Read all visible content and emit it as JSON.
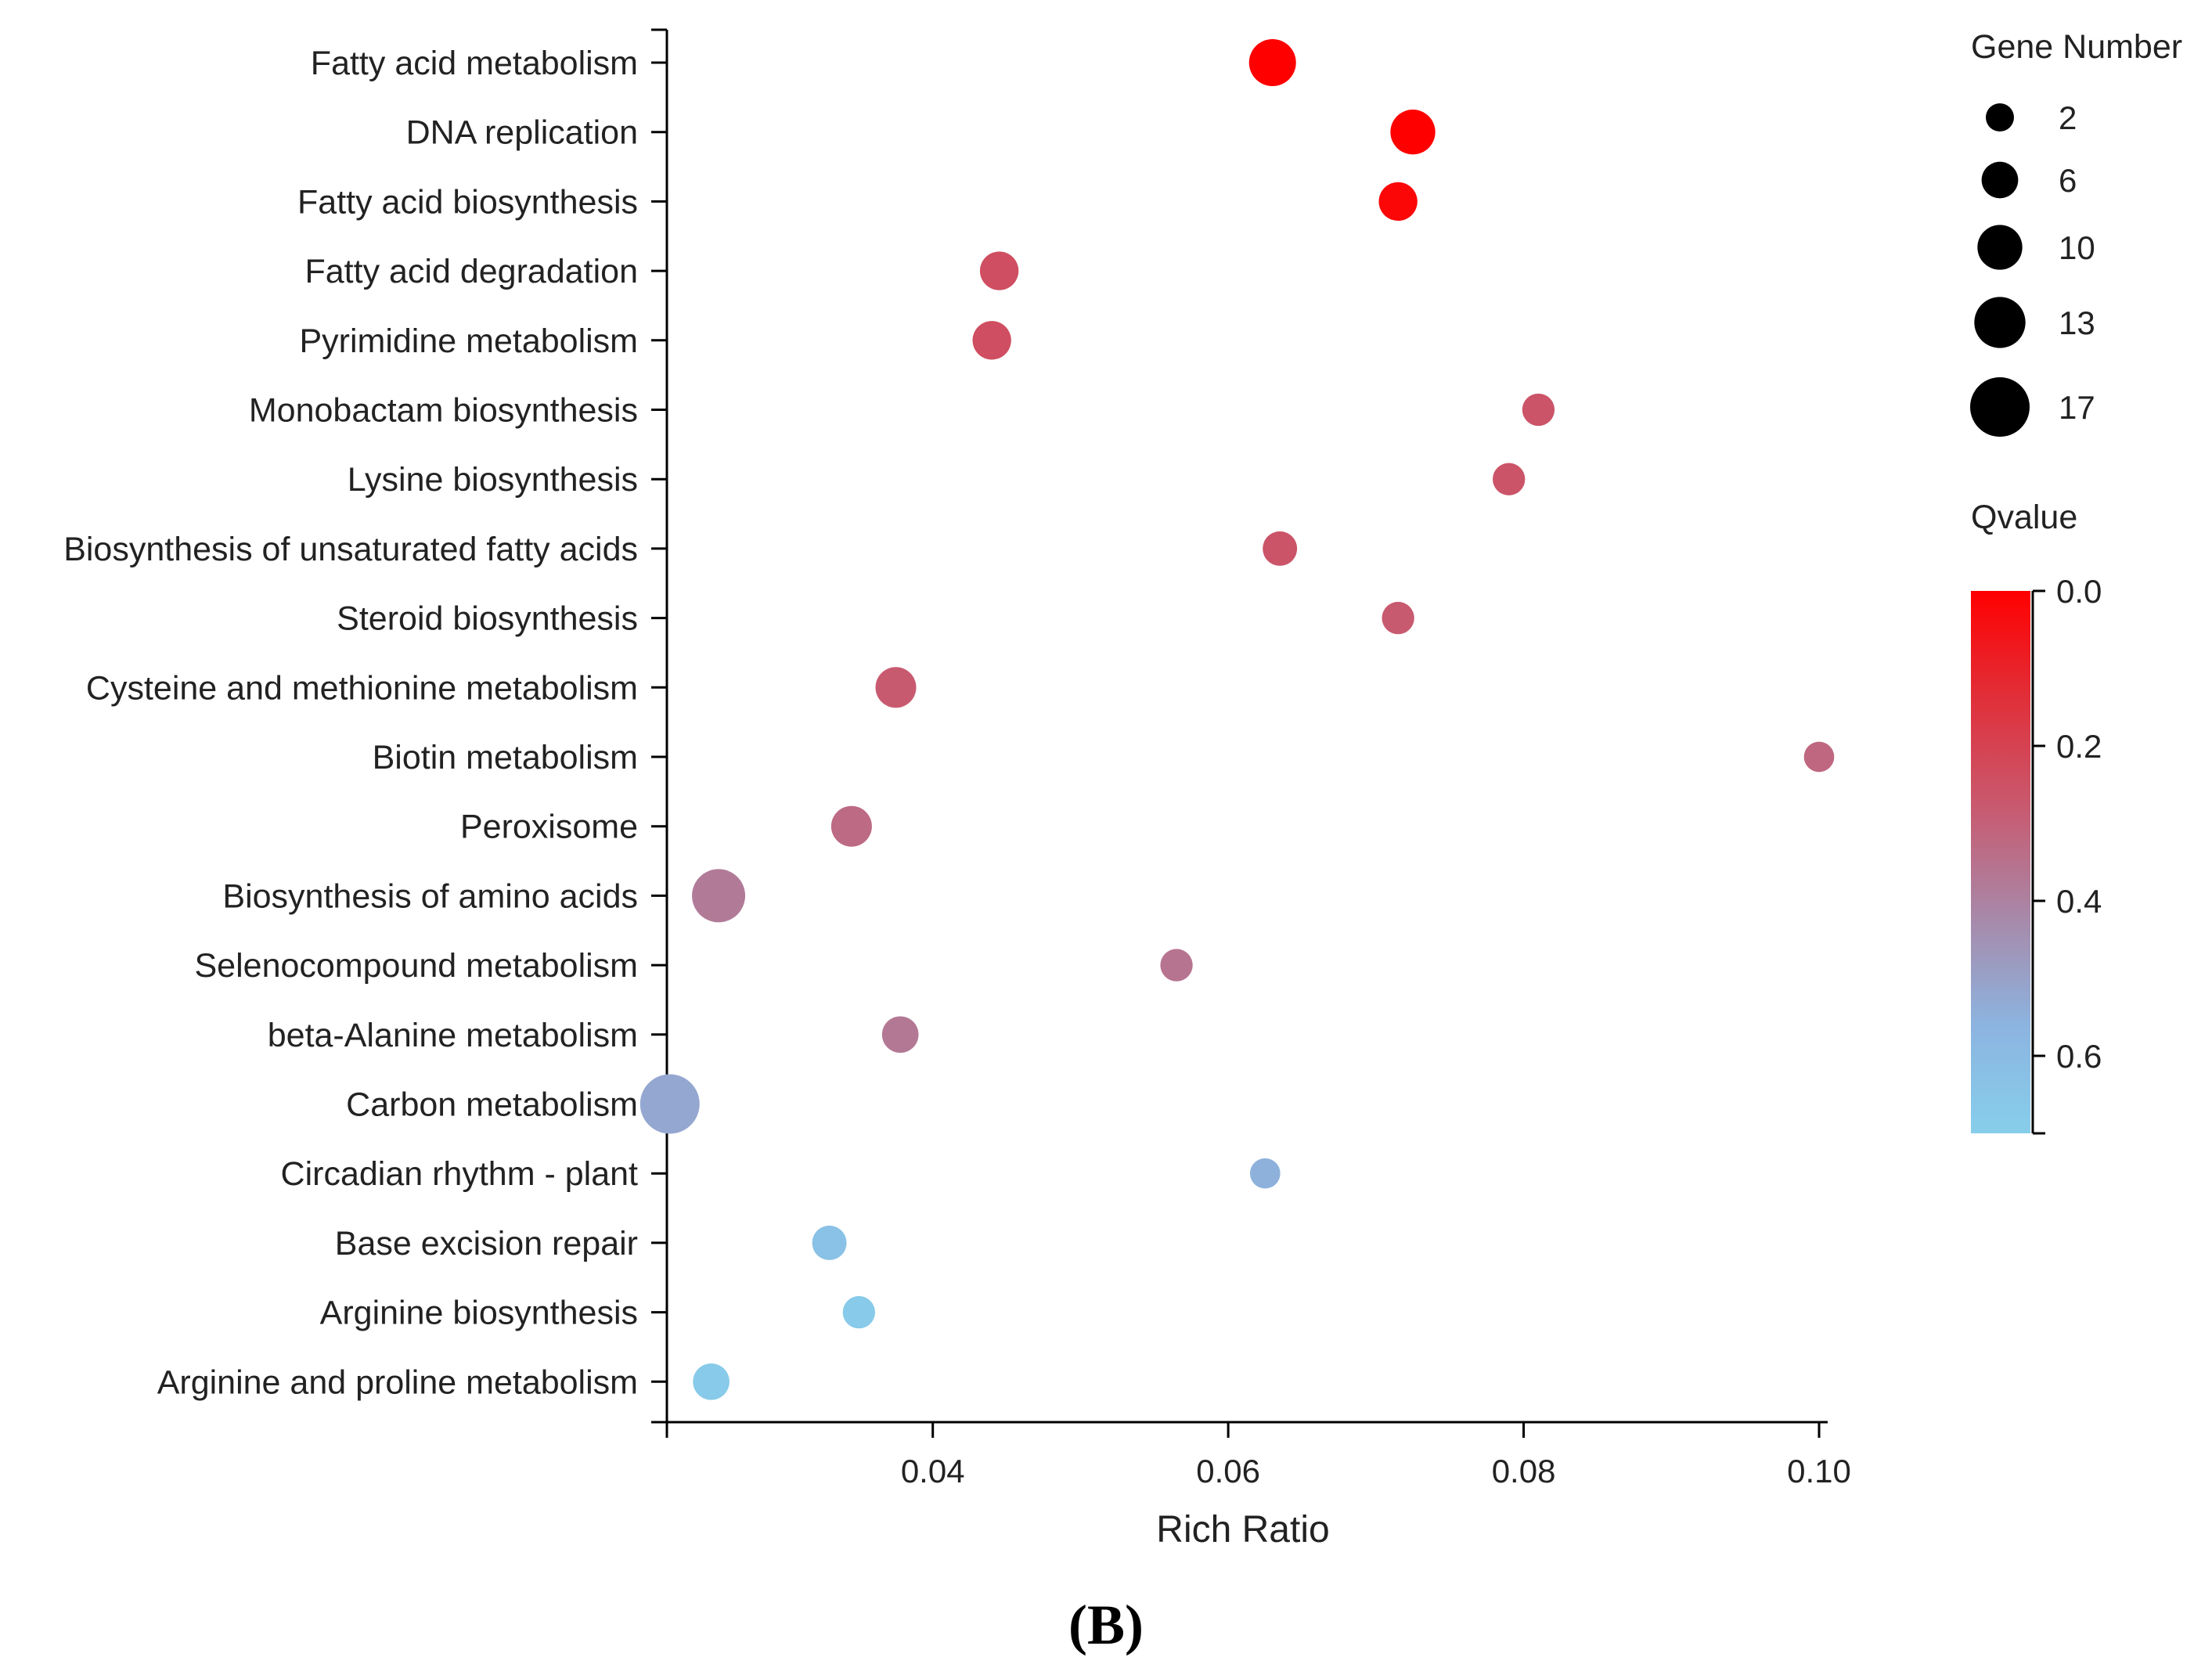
{
  "chart_data": {
    "type": "scatter",
    "panel_label": "(B)",
    "xlabel": "Rich Ratio",
    "xlim": [
      0.022,
      0.1
    ],
    "xticks": [
      0.04,
      0.06,
      0.08,
      0.1
    ],
    "xtick_labels": [
      "0.04",
      "0.06",
      "0.08",
      "0.10"
    ],
    "categories": [
      "Fatty acid metabolism",
      "DNA replication",
      "Fatty acid biosynthesis",
      "Fatty acid degradation",
      "Pyrimidine metabolism",
      "Monobactam biosynthesis",
      "Lysine biosynthesis",
      "Biosynthesis of unsaturated fatty acids",
      "Steroid biosynthesis",
      "Cysteine and methionine metabolism",
      "Biotin metabolism",
      "Peroxisome",
      "Biosynthesis of amino acids",
      "Selenocompound metabolism",
      "beta-Alanine metabolism",
      "Carbon metabolism",
      "Circadian rhythm - plant",
      "Base excision repair",
      "Arginine biosynthesis",
      "Arginine and proline metabolism"
    ],
    "points": [
      {
        "pathway": "Fatty acid metabolism",
        "rich_ratio": 0.063,
        "gene_number": 11,
        "qvalue": 0.0
      },
      {
        "pathway": "DNA replication",
        "rich_ratio": 0.0725,
        "gene_number": 10,
        "qvalue": 0.0
      },
      {
        "pathway": "Fatty acid biosynthesis",
        "rich_ratio": 0.0715,
        "gene_number": 7,
        "qvalue": 0.02
      },
      {
        "pathway": "Fatty acid degradation",
        "rich_ratio": 0.0445,
        "gene_number": 7,
        "qvalue": 0.24
      },
      {
        "pathway": "Pyrimidine metabolism",
        "rich_ratio": 0.044,
        "gene_number": 7,
        "qvalue": 0.24
      },
      {
        "pathway": "Monobactam biosynthesis",
        "rich_ratio": 0.081,
        "gene_number": 4,
        "qvalue": 0.26
      },
      {
        "pathway": "Lysine biosynthesis",
        "rich_ratio": 0.079,
        "gene_number": 4,
        "qvalue": 0.26
      },
      {
        "pathway": "Biosynthesis of unsaturated fatty acids",
        "rich_ratio": 0.0635,
        "gene_number": 5,
        "qvalue": 0.26
      },
      {
        "pathway": "Steroid biosynthesis",
        "rich_ratio": 0.0715,
        "gene_number": 4,
        "qvalue": 0.28
      },
      {
        "pathway": "Cysteine and methionine metabolism",
        "rich_ratio": 0.0375,
        "gene_number": 8,
        "qvalue": 0.28
      },
      {
        "pathway": "Biotin metabolism",
        "rich_ratio": 0.1,
        "gene_number": 3,
        "qvalue": 0.32
      },
      {
        "pathway": "Peroxisome",
        "rich_ratio": 0.0345,
        "gene_number": 8,
        "qvalue": 0.33
      },
      {
        "pathway": "Biosynthesis of amino acids",
        "rich_ratio": 0.0255,
        "gene_number": 14,
        "qvalue": 0.38
      },
      {
        "pathway": "Selenocompound metabolism",
        "rich_ratio": 0.0565,
        "gene_number": 4,
        "qvalue": 0.36
      },
      {
        "pathway": "beta-Alanine metabolism",
        "rich_ratio": 0.0378,
        "gene_number": 6,
        "qvalue": 0.37
      },
      {
        "pathway": "Carbon metabolism",
        "rich_ratio": 0.0222,
        "gene_number": 17,
        "qvalue": 0.52
      },
      {
        "pathway": "Circadian rhythm - plant",
        "rich_ratio": 0.0625,
        "gene_number": 3,
        "qvalue": 0.55
      },
      {
        "pathway": "Base excision repair",
        "rich_ratio": 0.033,
        "gene_number": 5,
        "qvalue": 0.63
      },
      {
        "pathway": "Arginine biosynthesis",
        "rich_ratio": 0.035,
        "gene_number": 4,
        "qvalue": 0.68
      },
      {
        "pathway": "Arginine and proline metabolism",
        "rich_ratio": 0.025,
        "gene_number": 6,
        "qvalue": 0.68
      }
    ],
    "size_legend": {
      "title": "Gene Number",
      "values": [
        2,
        6,
        10,
        13,
        17
      ],
      "labels": [
        "2",
        "6",
        "10",
        "13",
        "17"
      ]
    },
    "color_legend": {
      "title": "Qvalue",
      "range": [
        0.0,
        0.7
      ],
      "ticks": [
        0.0,
        0.2,
        0.4,
        0.6
      ],
      "tick_labels": [
        "0.0",
        "0.2",
        "0.4",
        "0.6"
      ],
      "colors": [
        "#ff0000",
        "#e0303a",
        "#c85a70",
        "#a888a8",
        "#8cb4e0",
        "#87ceeb"
      ]
    }
  }
}
